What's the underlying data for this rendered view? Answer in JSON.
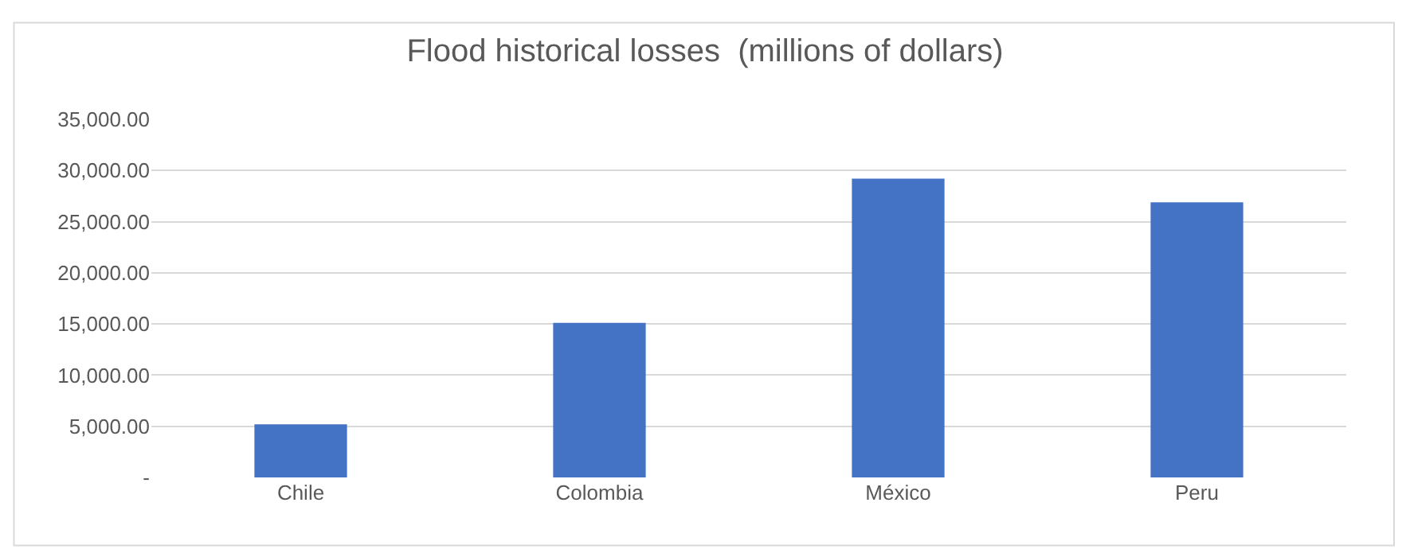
{
  "chart_data": {
    "type": "bar",
    "title": "Flood historical losses  (millions of dollars)",
    "categories": [
      "Chile",
      "Colombia",
      "México",
      "Peru"
    ],
    "values": [
      5200,
      15100,
      29200,
      26900
    ],
    "color": "#4472c4",
    "ylim": [
      0,
      35000
    ],
    "yticks": [
      {
        "value": 0,
        "label": "-"
      },
      {
        "value": 5000,
        "label": "5,000.00"
      },
      {
        "value": 10000,
        "label": "10,000.00"
      },
      {
        "value": 15000,
        "label": "15,000.00"
      },
      {
        "value": 20000,
        "label": "20,000.00"
      },
      {
        "value": 25000,
        "label": "25,000.00"
      },
      {
        "value": 30000,
        "label": "30,000.00"
      },
      {
        "value": 35000,
        "label": "35,000.00"
      }
    ],
    "grid": "y"
  }
}
